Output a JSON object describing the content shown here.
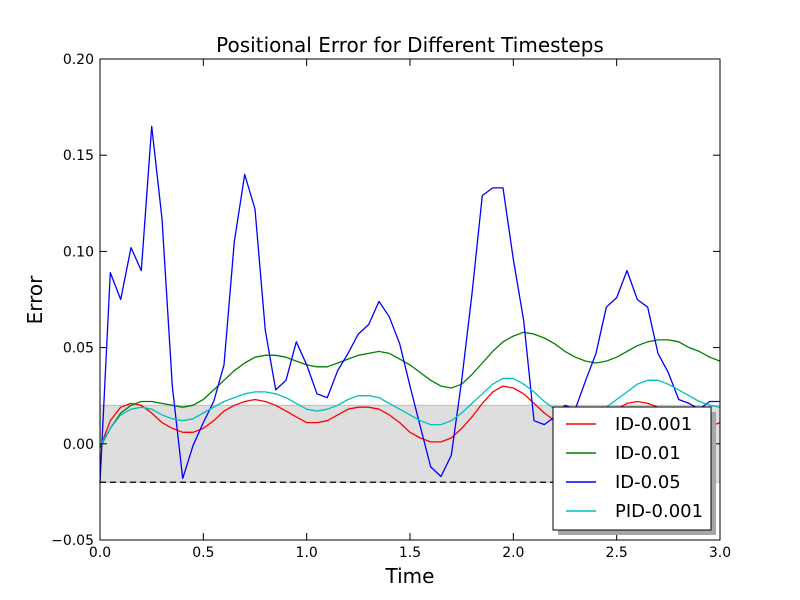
{
  "chart_data": {
    "type": "line",
    "title": "Positional Error for Different Timesteps",
    "xlabel": "Time",
    "ylabel": "Error",
    "xlim": [
      0.0,
      3.0
    ],
    "ylim": [
      -0.05,
      0.2
    ],
    "x_ticks": [
      0.0,
      0.5,
      1.0,
      1.5,
      2.0,
      2.5,
      3.0
    ],
    "x_tick_labels": [
      "0.0",
      "0.5",
      "1.0",
      "1.5",
      "2.0",
      "2.5",
      "3.0"
    ],
    "y_ticks": [
      -0.05,
      0.0,
      0.05,
      0.1,
      0.15,
      0.2
    ],
    "y_tick_labels": [
      "−0.05",
      "0.00",
      "0.05",
      "0.10",
      "0.15",
      "0.20"
    ],
    "grid": false,
    "legend_position": "lower-right",
    "tolerance_band": {
      "y_low": -0.02,
      "y_high": 0.02,
      "color": "#dedede"
    },
    "reference_line": {
      "y": -0.02,
      "style": "dashed",
      "color": "#000000"
    },
    "series": [
      {
        "name": "ID-0.001",
        "color": "#ff0000",
        "x": [
          0.0,
          0.05,
          0.1,
          0.15,
          0.2,
          0.25,
          0.3,
          0.35,
          0.4,
          0.45,
          0.5,
          0.55,
          0.6,
          0.65,
          0.7,
          0.75,
          0.8,
          0.85,
          0.9,
          0.95,
          1.0,
          1.05,
          1.1,
          1.15,
          1.2,
          1.25,
          1.3,
          1.35,
          1.4,
          1.45,
          1.5,
          1.55,
          1.6,
          1.65,
          1.7,
          1.75,
          1.8,
          1.85,
          1.9,
          1.95,
          2.0,
          2.05,
          2.1,
          2.15,
          2.2,
          2.25,
          2.3,
          2.35,
          2.4,
          2.45,
          2.5,
          2.55,
          2.6,
          2.65,
          2.7,
          2.75,
          2.8,
          2.85,
          2.9,
          2.95,
          3.0
        ],
        "y": [
          -0.002,
          0.012,
          0.019,
          0.021,
          0.02,
          0.016,
          0.011,
          0.008,
          0.006,
          0.006,
          0.008,
          0.012,
          0.017,
          0.02,
          0.022,
          0.023,
          0.022,
          0.02,
          0.017,
          0.014,
          0.011,
          0.011,
          0.012,
          0.015,
          0.018,
          0.019,
          0.019,
          0.018,
          0.015,
          0.011,
          0.006,
          0.003,
          0.001,
          0.001,
          0.003,
          0.008,
          0.014,
          0.021,
          0.027,
          0.03,
          0.029,
          0.026,
          0.021,
          0.016,
          0.012,
          0.009,
          0.008,
          0.009,
          0.012,
          0.015,
          0.018,
          0.021,
          0.022,
          0.021,
          0.019,
          0.016,
          0.012,
          0.009,
          0.008,
          0.009,
          0.011
        ]
      },
      {
        "name": "ID-0.01",
        "color": "#008000",
        "x": [
          0.0,
          0.05,
          0.1,
          0.15,
          0.2,
          0.25,
          0.3,
          0.35,
          0.4,
          0.45,
          0.5,
          0.55,
          0.6,
          0.65,
          0.7,
          0.75,
          0.8,
          0.85,
          0.9,
          0.95,
          1.0,
          1.05,
          1.1,
          1.15,
          1.2,
          1.25,
          1.3,
          1.35,
          1.4,
          1.45,
          1.5,
          1.55,
          1.6,
          1.65,
          1.7,
          1.75,
          1.8,
          1.85,
          1.9,
          1.95,
          2.0,
          2.05,
          2.1,
          2.15,
          2.2,
          2.25,
          2.3,
          2.35,
          2.4,
          2.45,
          2.5,
          2.55,
          2.6,
          2.65,
          2.7,
          2.75,
          2.8,
          2.85,
          2.9,
          2.95,
          3.0
        ],
        "y": [
          -0.002,
          0.008,
          0.016,
          0.02,
          0.022,
          0.022,
          0.021,
          0.02,
          0.019,
          0.02,
          0.023,
          0.028,
          0.033,
          0.038,
          0.042,
          0.045,
          0.046,
          0.046,
          0.045,
          0.043,
          0.041,
          0.04,
          0.04,
          0.042,
          0.044,
          0.046,
          0.047,
          0.048,
          0.047,
          0.044,
          0.041,
          0.037,
          0.033,
          0.03,
          0.029,
          0.031,
          0.036,
          0.042,
          0.048,
          0.053,
          0.056,
          0.058,
          0.057,
          0.055,
          0.052,
          0.048,
          0.045,
          0.043,
          0.042,
          0.043,
          0.045,
          0.048,
          0.051,
          0.053,
          0.054,
          0.054,
          0.053,
          0.05,
          0.048,
          0.045,
          0.043
        ]
      },
      {
        "name": "ID-0.05",
        "color": "#0000ff",
        "x": [
          0.0,
          0.05,
          0.1,
          0.15,
          0.2,
          0.25,
          0.3,
          0.35,
          0.4,
          0.45,
          0.5,
          0.55,
          0.6,
          0.65,
          0.7,
          0.75,
          0.8,
          0.85,
          0.9,
          0.95,
          1.0,
          1.05,
          1.1,
          1.15,
          1.2,
          1.25,
          1.3,
          1.35,
          1.4,
          1.45,
          1.5,
          1.55,
          1.6,
          1.65,
          1.7,
          1.75,
          1.8,
          1.85,
          1.9,
          1.95,
          2.0,
          2.05,
          2.1,
          2.15,
          2.2,
          2.25,
          2.3,
          2.35,
          2.4,
          2.45,
          2.5,
          2.55,
          2.6,
          2.65,
          2.7,
          2.75,
          2.8,
          2.85,
          2.9,
          2.95,
          3.0
        ],
        "y": [
          -0.02,
          0.089,
          0.075,
          0.102,
          0.09,
          0.165,
          0.117,
          0.03,
          -0.018,
          -0.001,
          0.011,
          0.022,
          0.041,
          0.105,
          0.14,
          0.122,
          0.059,
          0.028,
          0.033,
          0.053,
          0.041,
          0.026,
          0.024,
          0.038,
          0.047,
          0.057,
          0.062,
          0.074,
          0.066,
          0.052,
          0.03,
          0.009,
          -0.012,
          -0.017,
          -0.006,
          0.033,
          0.078,
          0.129,
          0.133,
          0.133,
          0.096,
          0.064,
          0.012,
          0.01,
          0.014,
          0.02,
          0.018,
          0.033,
          0.047,
          0.071,
          0.076,
          0.09,
          0.075,
          0.071,
          0.047,
          0.037,
          0.023,
          0.021,
          0.018,
          0.022,
          0.022
        ]
      },
      {
        "name": "PID-0.001",
        "color": "#00bfbf",
        "x": [
          0.0,
          0.05,
          0.1,
          0.15,
          0.2,
          0.25,
          0.3,
          0.35,
          0.4,
          0.45,
          0.5,
          0.55,
          0.6,
          0.65,
          0.7,
          0.75,
          0.8,
          0.85,
          0.9,
          0.95,
          1.0,
          1.05,
          1.1,
          1.15,
          1.2,
          1.25,
          1.3,
          1.35,
          1.4,
          1.45,
          1.5,
          1.55,
          1.6,
          1.65,
          1.7,
          1.75,
          1.8,
          1.85,
          1.9,
          1.95,
          2.0,
          2.05,
          2.1,
          2.15,
          2.2,
          2.25,
          2.3,
          2.35,
          2.4,
          2.45,
          2.5,
          2.55,
          2.6,
          2.65,
          2.7,
          2.75,
          2.8,
          2.85,
          2.9,
          2.95,
          3.0
        ],
        "y": [
          -0.001,
          0.008,
          0.015,
          0.018,
          0.019,
          0.018,
          0.015,
          0.013,
          0.012,
          0.013,
          0.016,
          0.019,
          0.022,
          0.024,
          0.026,
          0.027,
          0.027,
          0.026,
          0.024,
          0.021,
          0.018,
          0.017,
          0.018,
          0.02,
          0.023,
          0.025,
          0.025,
          0.024,
          0.021,
          0.018,
          0.015,
          0.012,
          0.01,
          0.01,
          0.012,
          0.016,
          0.021,
          0.026,
          0.031,
          0.034,
          0.034,
          0.031,
          0.027,
          0.022,
          0.018,
          0.015,
          0.014,
          0.014,
          0.016,
          0.019,
          0.023,
          0.027,
          0.031,
          0.033,
          0.033,
          0.031,
          0.028,
          0.025,
          0.022,
          0.02,
          0.019
        ]
      }
    ]
  }
}
